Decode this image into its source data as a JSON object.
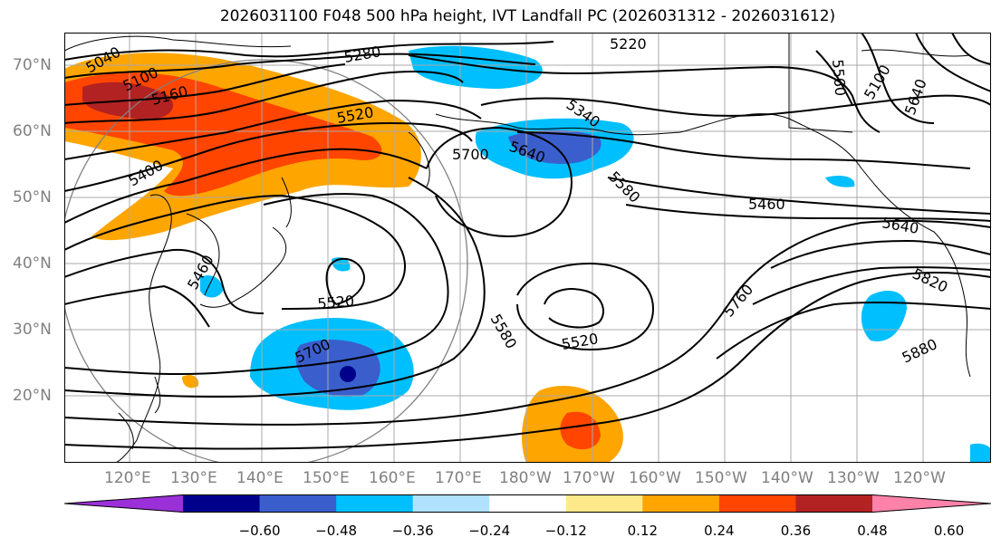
{
  "title": "2026031100 F048 500 hPa height, IVT Landfall PC (2026031312 - 2026031612)",
  "lat_labels": [
    "70°N",
    "60°N",
    "50°N",
    "40°N",
    "30°N",
    "20°N"
  ],
  "lon_labels": [
    "120°E",
    "130°E",
    "140°E",
    "150°E",
    "160°E",
    "170°E",
    "180°W",
    "170°W",
    "160°W",
    "150°W",
    "140°W",
    "130°W",
    "120°W"
  ],
  "contour_labels": [
    "5040",
    "5100",
    "5160",
    "5280",
    "5220",
    "5560",
    "5100",
    "5640",
    "5520",
    "5340",
    "5400",
    "5700",
    "5640",
    "5580",
    "5460",
    "5640",
    "5460",
    "5820",
    "5760",
    "5520",
    "5580",
    "5520",
    "5700",
    "5880"
  ],
  "colorbar": {
    "colors": [
      "#9b30d9",
      "#00008b",
      "#3a5fcd",
      "#00bfff",
      "#b0e2ff",
      "#ffffff",
      "#fde98a",
      "#ffa500",
      "#ff4500",
      "#b22222",
      "#ff82ab"
    ],
    "ticks": [
      "−0.60",
      "−0.48",
      "−0.36",
      "−0.24",
      "−0.12",
      "0.12",
      "0.24",
      "0.36",
      "0.48",
      "0.60"
    ]
  }
}
